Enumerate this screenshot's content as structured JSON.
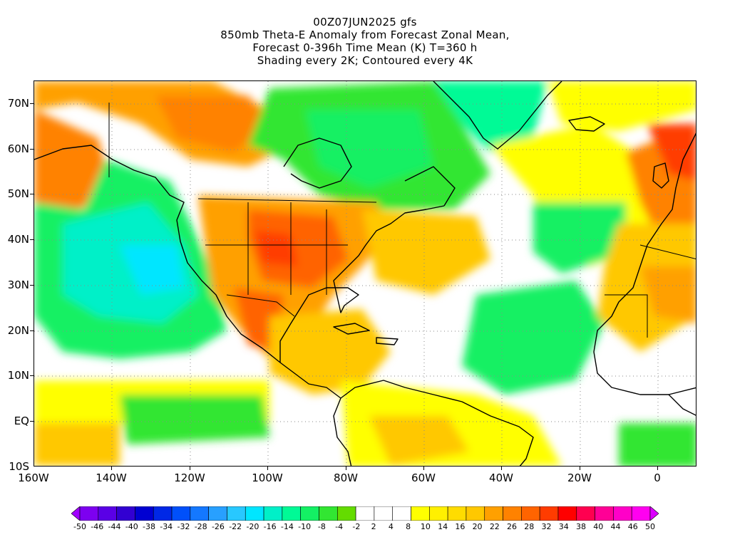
{
  "title": {
    "line1": "00Z07JUN2025 gfs",
    "line2": "850mb Theta-E Anomaly from Forecast Zonal Mean,",
    "line3": "Forecast 0-396h Time Mean (K) T=360 h",
    "line4": "Shading every 2K; Contoured every 4K"
  },
  "map": {
    "projection": "lat-lon",
    "lon_range": [
      -160,
      10
    ],
    "lat_range": [
      -10,
      75
    ],
    "lat_labels": [
      "70N",
      "60N",
      "50N",
      "40N",
      "30N",
      "20N",
      "10N",
      "EQ",
      "10S"
    ],
    "lon_labels": [
      "160W",
      "140W",
      "120W",
      "100W",
      "80W",
      "60W",
      "40W",
      "20W",
      "0"
    ],
    "grid": "dotted"
  },
  "colorbar": {
    "labels": [
      "-50",
      "-46",
      "-44",
      "-40",
      "-38",
      "-34",
      "-32",
      "-28",
      "-26",
      "-22",
      "-20",
      "-16",
      "-14",
      "-10",
      "-8",
      "-4",
      "-2",
      "2",
      "4",
      "8",
      "10",
      "14",
      "16",
      "20",
      "22",
      "26",
      "28",
      "32",
      "34",
      "38",
      "40",
      "44",
      "46",
      "50"
    ],
    "colors": [
      "#a000ff",
      "#7d00f0",
      "#5a00e6",
      "#3200d2",
      "#0000d2",
      "#0028e6",
      "#0050fa",
      "#1478ff",
      "#28a0ff",
      "#28c8ff",
      "#00e6ff",
      "#00f0c8",
      "#00fa96",
      "#14f064",
      "#32e632",
      "#64dc00",
      "#ffffff",
      "#ffffff",
      "#ffffff",
      "#ffff00",
      "#fff000",
      "#ffdc00",
      "#ffc800",
      "#ffa000",
      "#ff8200",
      "#ff6400",
      "#ff3c00",
      "#ff0000",
      "#ff0050",
      "#ff0096",
      "#ff00c8",
      "#ff00f0",
      "#dc00ff"
    ]
  }
}
